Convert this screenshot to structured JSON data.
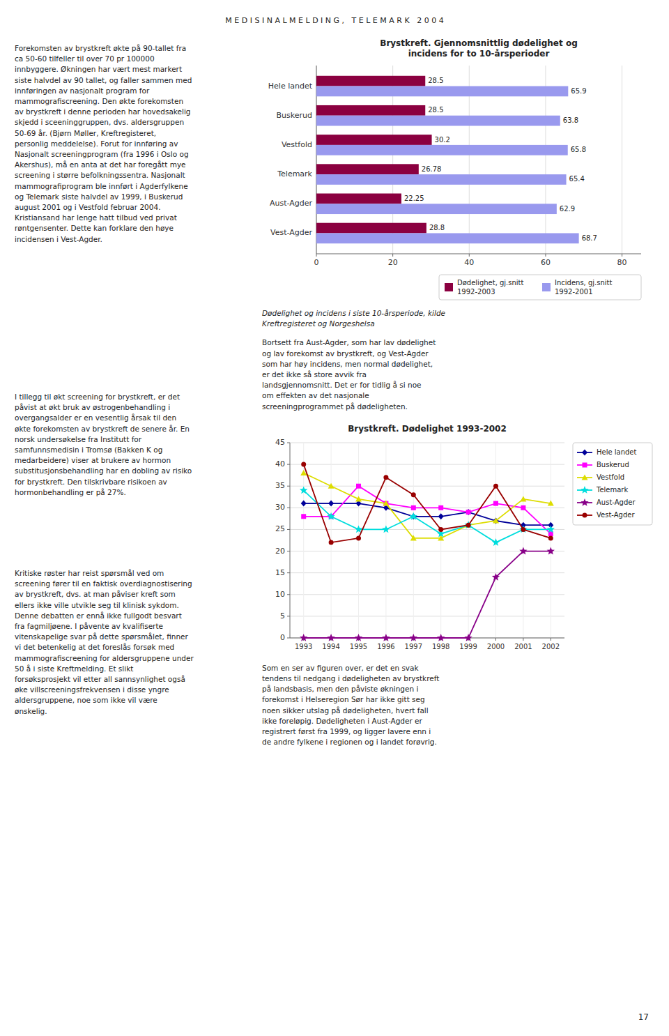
{
  "page_title": "M E D I S I N A L M E L D I N G ,   T E L E M A R K   2 0 0 4",
  "left_text_blocks": [
    "Forekomsten av brystkreft økte på 90-tallet fra\nca 50-60 tilfeller til over 70 pr 100000\ninnbyggere. Økningen har vært mest markert\nsiste halvdel av 90 tallet, og faller sammen med\ninnføringen av nasjonalt program for\nmammografiscreening. Den økte forekomsten\nav brystkreft i denne perioden har hovedsakelig\nskjedd i sceeninggruppen, dvs. aldersgruppen\n50-69 år. (Bjørn Møller, Kreftregisteret,\npersonlig meddelelse). Forut for innføring av\nNasjonalt screeningprogram (fra 1996 i Oslo og\nAkershus), må en anta at det har foregått mye\nscreening i større befolkningssentra. Nasjonalt\nmammografiprogram ble innført i Agderfylkene\nog Telemark siste halvdel av 1999, i Buskerud\naugust 2001 og i Vestfold februar 2004.\nKristiansand har lenge hatt tilbud ved privat\nrøntgensenter. Dette kan forklare den høye\nincidensen i Vest-Agder.",
    "I tillegg til økt screening for brystkreft, er det\npåvist at økt bruk av østrogenbehandling i\novergangsalder er en vesentlig årsak til den\nøkte forekomsten av brystkreft de senere år. En\nnorsk undersøkelse fra Institutt for\nsamfunnsmedisin i Tromsø (Bakken K og\nmedarbeidere) viser at brukere av hormon\nsubstitusjonsbehandling har en dobling av risiko\nfor brystkreft. Den tilskrivbare risikoen av\nhormonbehandling er på 27%.",
    "Kritiske røster har reist spørsmål ved om\nscreening fører til en faktisk overdiagnostisering\nav brystkreft, dvs. at man påviser kreft som\nellers ikke ville utvikle seg til klinisk sykdom.\nDenne debatten er ennå ikke fullgodt besvart\nfra fagmiljøene. I påvente av kvalifiserte\nvitenskapelige svar på dette spørsmålet, finner\nvi det betenkelig at det foreslås forsøk med\nmammografiscreening for aldersgruppene under\n50 å i siste Kreftmelding. Et slikt\nforsøksprosjekt vil etter all sannsynlighet også\nøke villscreeningsfrekvensen i disse yngre\naldersgruppene, noe som ikke vil være\nønskelig."
  ],
  "right_text_blocks": [
    "Bortsett fra Aust-Agder, som har lav dødelighet\nog lav forekomst av brystkreft, og Vest-Agder\nsom har høy incidens, men normal dødelighet,\ner det ikke så store avvik fra\nlandsgjennomsnitt. Det er for tidlig å si noe\nom effekten av det nasjonale\nscreeningprogrammet på dødeligheten.",
    "Som en ser av figuren over, er det en svak\ntendens til nedgang i dødeligheten av brystkreft\npå landsbasis, men den påviste økningen i\nforekomst i Helseregion Sør har ikke gitt seg\nnoen sikker utslag på dødeligheten, hvert fall\nikke foreløpig. Dødeligheten i Aust-Agder er\nregistrert først fra 1999, og ligger lavere enn i\nde andre fylkene i regionen og i landet forøvrig."
  ],
  "page_number": "17",
  "chart_data": [
    {
      "type": "bar",
      "orientation": "horizontal",
      "title": "Brystkreft. Gjennomsnittlig dødelighet og\nincidens for to 10-årsperioder",
      "caption": "Dødelighet og incidens i siste 10-årsperiode, kilde\nKreftregisteret og Norgeshelsa",
      "categories": [
        "Vest-Agder",
        "Aust-Agder",
        "Telemark",
        "Vestfold",
        "Buskerud",
        "Hele landet"
      ],
      "series": [
        {
          "name": "Dødelighet, gj.snitt\n1992-2003",
          "color": "#8B0040",
          "values": [
            28.8,
            22.25,
            26.78,
            30.2,
            28.5,
            28.5
          ]
        },
        {
          "name": "Incidens, gj.snitt\n1992-2001",
          "color": "#9999EE",
          "values": [
            68.7,
            62.9,
            65.4,
            65.8,
            63.8,
            65.9
          ]
        }
      ],
      "xlim": [
        0,
        85
      ],
      "xticks": [
        0,
        20,
        40,
        60,
        80
      ],
      "grid": true,
      "legend": "lower right",
      "data_labels": true
    },
    {
      "type": "line",
      "title": "Brystkreft. Dødelighet 1993-2002",
      "x": [
        1993,
        1994,
        1995,
        1996,
        1997,
        1998,
        1999,
        2000,
        2001,
        2002
      ],
      "series": [
        {
          "name": "Hele landet",
          "color": "#000099",
          "marker": "diamond",
          "values": [
            31,
            31,
            31,
            30,
            28,
            28,
            29,
            27,
            26,
            26
          ]
        },
        {
          "name": "Buskerud",
          "color": "#FF00FF",
          "marker": "square",
          "values": [
            28,
            28,
            35,
            31,
            30,
            30,
            29,
            31,
            30,
            24
          ]
        },
        {
          "name": "Vestfold",
          "color": "#DDDD00",
          "marker": "triangle",
          "values": [
            38,
            35,
            32,
            31,
            23,
            23,
            26,
            27,
            32,
            31
          ]
        },
        {
          "name": "Telemark",
          "color": "#00DDDD",
          "marker": "star",
          "values": [
            34,
            28,
            25,
            25,
            28,
            24,
            26,
            22,
            25,
            25
          ]
        },
        {
          "name": "Aust-Agder",
          "color": "#880088",
          "marker": "star",
          "values": [
            0,
            0,
            0,
            0,
            0,
            0,
            0,
            14,
            20,
            20
          ]
        },
        {
          "name": "Vest-Agder",
          "color": "#990000",
          "marker": "circle",
          "values": [
            40,
            22,
            23,
            37,
            33,
            25,
            26,
            35,
            25,
            23
          ]
        }
      ],
      "xlim": [
        1992.5,
        2002.5
      ],
      "xticks": [
        1993,
        1994,
        1995,
        1996,
        1997,
        1998,
        1999,
        2000,
        2001,
        2002
      ],
      "ylim": [
        0,
        45
      ],
      "yticks": [
        0,
        5,
        10,
        15,
        20,
        25,
        30,
        35,
        40,
        45
      ],
      "grid": true,
      "legend": "upper right"
    }
  ]
}
